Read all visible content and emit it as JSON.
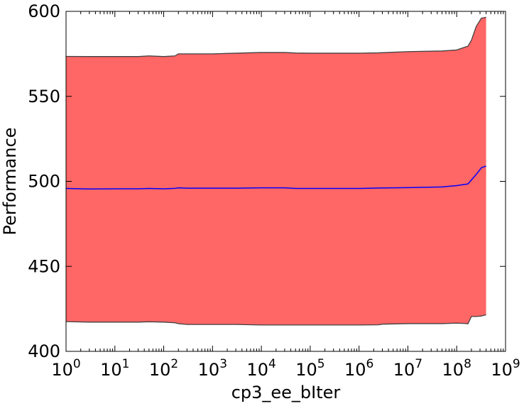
{
  "chart_data": {
    "type": "area",
    "title": "",
    "xlabel": "cp3_ee_bIter",
    "ylabel": "Performance",
    "xscale": "log",
    "xlim": [
      1,
      1000000000
    ],
    "ylim": [
      400,
      600
    ],
    "x_ticks": [
      {
        "value": 1,
        "base": "10",
        "exp": "0"
      },
      {
        "value": 10,
        "base": "10",
        "exp": "1"
      },
      {
        "value": 100,
        "base": "10",
        "exp": "2"
      },
      {
        "value": 1000,
        "base": "10",
        "exp": "3"
      },
      {
        "value": 10000,
        "base": "10",
        "exp": "4"
      },
      {
        "value": 100000,
        "base": "10",
        "exp": "5"
      },
      {
        "value": 1000000,
        "base": "10",
        "exp": "6"
      },
      {
        "value": 10000000,
        "base": "10",
        "exp": "7"
      },
      {
        "value": 100000000,
        "base": "10",
        "exp": "8"
      },
      {
        "value": 1000000000,
        "base": "10",
        "exp": "9"
      }
    ],
    "y_ticks": [
      {
        "value": 400,
        "label": "400"
      },
      {
        "value": 450,
        "label": "450"
      },
      {
        "value": 500,
        "label": "500"
      },
      {
        "value": 550,
        "label": "550"
      },
      {
        "value": 600,
        "label": "600"
      }
    ],
    "grid": false,
    "series": [
      {
        "role": "mean",
        "color": "#0000ff",
        "x": [
          1,
          3,
          10,
          30,
          50,
          100,
          170,
          200,
          300,
          1000,
          3000,
          10000,
          30000,
          50000,
          100000,
          1000000,
          2500000,
          10000000,
          50000000,
          100000000,
          170000000,
          250000000,
          320000000,
          400000000
        ],
        "y": [
          495.8,
          495.5,
          495.6,
          495.6,
          495.8,
          495.6,
          495.9,
          496.2,
          496.0,
          496.0,
          496.0,
          496.2,
          496.2,
          495.8,
          495.8,
          495.8,
          496.1,
          496.3,
          496.7,
          497.5,
          498.5,
          504.0,
          508.0,
          509.0
        ]
      },
      {
        "role": "upper",
        "color": "#404040",
        "x": [
          1,
          3,
          10,
          30,
          50,
          100,
          170,
          200,
          300,
          1000,
          3000,
          10000,
          30000,
          50000,
          100000,
          1000000,
          2500000,
          10000000,
          50000000,
          100000000,
          150000000,
          170000000,
          200000000,
          250000000,
          320000000,
          400000000
        ],
        "y": [
          573.5,
          573.4,
          573.4,
          573.4,
          573.8,
          573.4,
          573.8,
          575.0,
          575.0,
          575.0,
          575.4,
          575.8,
          575.8,
          575.5,
          575.4,
          575.4,
          575.6,
          576.3,
          576.7,
          577.3,
          579.0,
          579.5,
          583.0,
          591.0,
          596.0,
          596.5
        ]
      },
      {
        "role": "lower",
        "color": "#404040",
        "x": [
          1,
          3,
          10,
          30,
          50,
          100,
          170,
          200,
          300,
          1000,
          3000,
          10000,
          30000,
          50000,
          100000,
          1000000,
          2500000,
          3000000,
          10000000,
          50000000,
          100000000,
          150000000,
          170000000,
          200000000,
          250000000,
          320000000,
          400000000
        ],
        "y": [
          417.5,
          417.2,
          417.2,
          417.2,
          417.4,
          417.2,
          416.8,
          416.3,
          415.8,
          415.8,
          415.8,
          415.5,
          415.5,
          415.5,
          415.5,
          415.5,
          415.6,
          416.0,
          416.3,
          416.3,
          416.6,
          416.4,
          416.2,
          420.5,
          420.5,
          420.8,
          421.5
        ]
      }
    ],
    "fill_color": "#ff6666"
  }
}
